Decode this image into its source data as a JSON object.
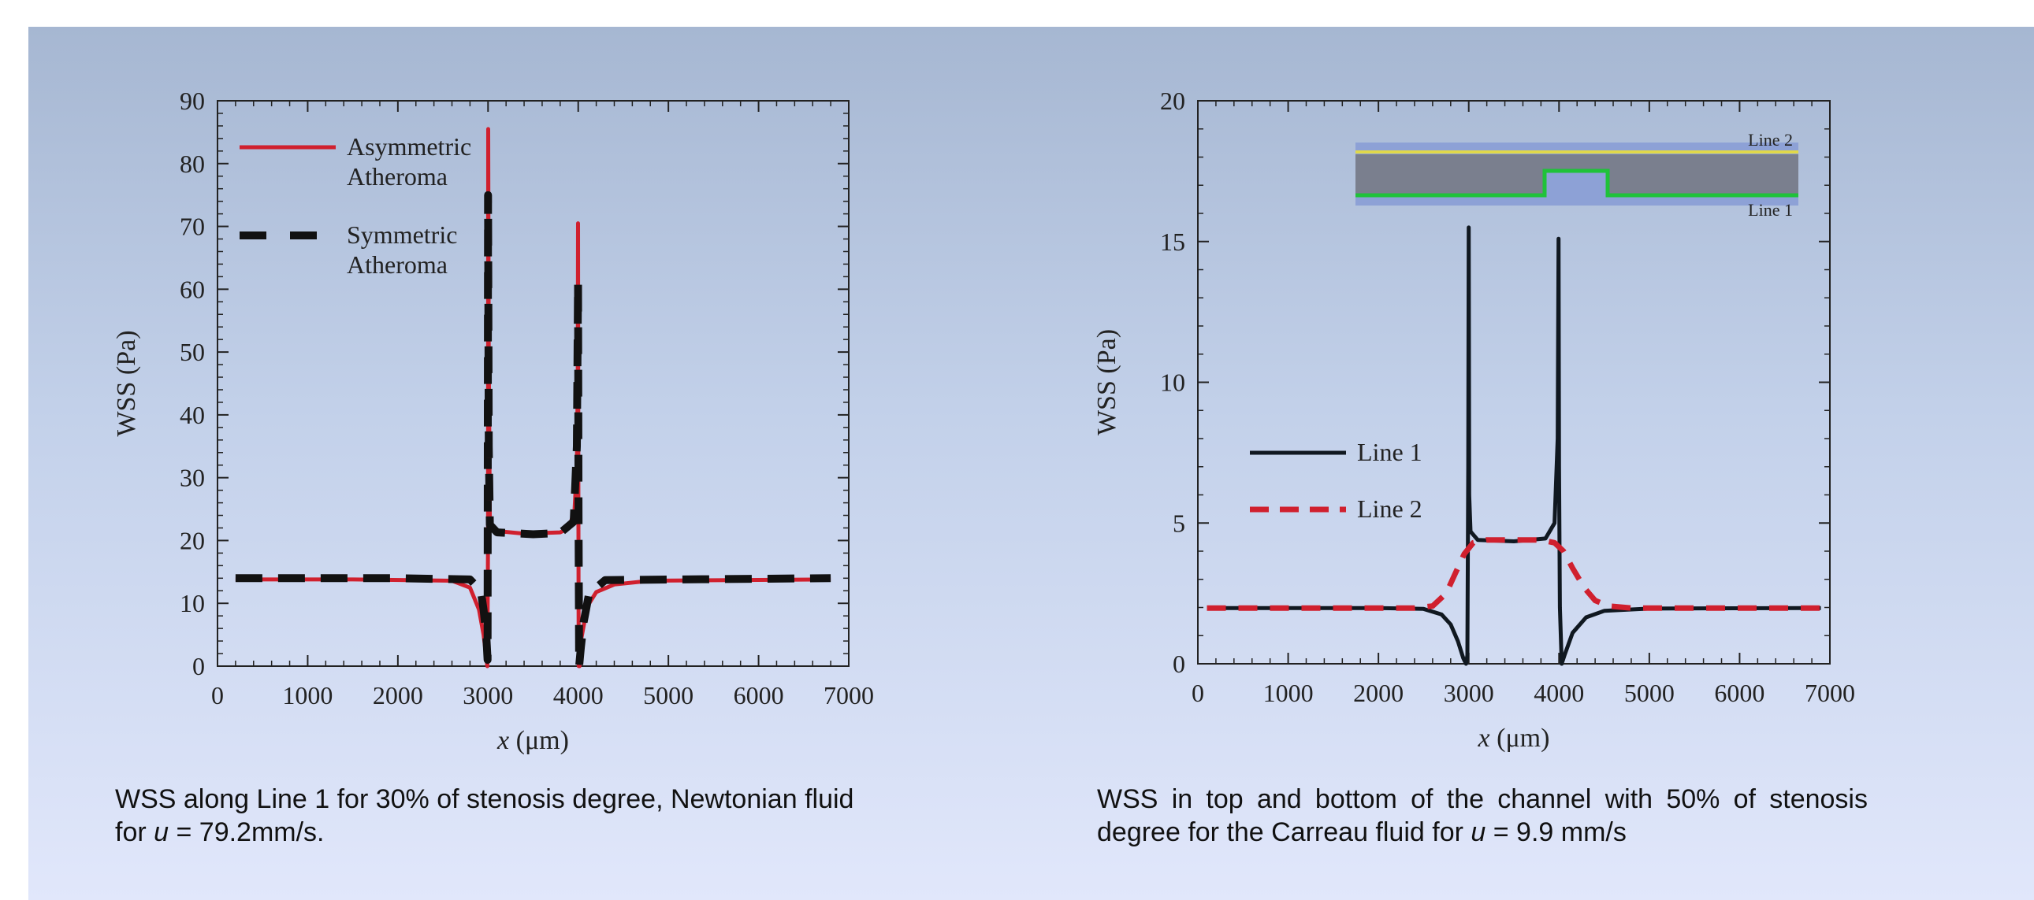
{
  "charts": [
    {
      "caption": {
        "pre": "WSS along Line 1 for 30% of stenosis degree, Newtonian fluid for ",
        "var": "u",
        "post": " = 79.2mm/s."
      }
    },
    {
      "caption": {
        "pre": "WSS in top and bottom of the channel with 50% of stenosis degree for the Carreau fluid for ",
        "var": "u",
        "post": " = 9.9 mm/s"
      },
      "inset_labels": [
        "Line 2",
        "Line 1"
      ]
    }
  ],
  "chart_data": [
    {
      "type": "line",
      "xlabel_var": "x",
      "xlabel_unit": "(μm)",
      "ylabel": "WSS (Pa)",
      "xlim": [
        0,
        7000
      ],
      "ylim": [
        0,
        90
      ],
      "xticks": [
        "0",
        "1000",
        "2000",
        "3000",
        "4000",
        "5000",
        "6000",
        "7000"
      ],
      "yticks": [
        "0",
        "10",
        "20",
        "30",
        "40",
        "50",
        "60",
        "70",
        "80",
        "90"
      ],
      "legend_position": "top-left",
      "series": [
        {
          "name": [
            "Asymmetric",
            "Atheroma"
          ],
          "color": "#d0202e",
          "dash": "solid",
          "points": [
            [
              200,
              13.8
            ],
            [
              1500,
              13.8
            ],
            [
              2600,
              13.6
            ],
            [
              2800,
              12.5
            ],
            [
              2900,
              9
            ],
            [
              2950,
              5
            ],
            [
              2980,
              1.5
            ],
            [
              2992,
              0
            ],
            [
              3000,
              20
            ],
            [
              3002,
              85.5
            ],
            [
              3008,
              50
            ],
            [
              3020,
              23
            ],
            [
              3100,
              21.5
            ],
            [
              3400,
              21.1
            ],
            [
              3800,
              21.3
            ],
            [
              3900,
              22
            ],
            [
              3960,
              25
            ],
            [
              3985,
              32
            ],
            [
              3995,
              45
            ],
            [
              3998,
              70.5
            ],
            [
              4002,
              30
            ],
            [
              4005,
              0
            ],
            [
              4015,
              0
            ],
            [
              4030,
              4
            ],
            [
              4100,
              9.5
            ],
            [
              4200,
              11.8
            ],
            [
              4400,
              13
            ],
            [
              4800,
              13.6
            ],
            [
              6800,
              13.8
            ]
          ]
        },
        {
          "name": [
            "Symmetric",
            "Atheroma"
          ],
          "color": "#111111",
          "dash": "dashed",
          "points": [
            [
              200,
              14
            ],
            [
              2000,
              14
            ],
            [
              2800,
              13.8
            ],
            [
              2920,
              12
            ],
            [
              2950,
              9
            ],
            [
              2980,
              5
            ],
            [
              2995,
              1
            ],
            [
              3000,
              75
            ],
            [
              3008,
              35
            ],
            [
              3020,
              22.5
            ],
            [
              3100,
              21.3
            ],
            [
              3500,
              21
            ],
            [
              3800,
              21.2
            ],
            [
              3950,
              23
            ],
            [
              3985,
              35
            ],
            [
              3998,
              61
            ],
            [
              4003,
              25
            ],
            [
              4010,
              0
            ],
            [
              4030,
              3
            ],
            [
              4060,
              7
            ],
            [
              4120,
              11.5
            ],
            [
              4300,
              13.7
            ],
            [
              6800,
              14
            ]
          ]
        }
      ]
    },
    {
      "type": "line",
      "xlabel_var": "x",
      "xlabel_unit": "(μm)",
      "ylabel": "WSS (Pa)",
      "xlim": [
        0,
        7000
      ],
      "ylim": [
        0,
        20
      ],
      "xticks": [
        "0",
        "1000",
        "2000",
        "3000",
        "4000",
        "5000",
        "6000",
        "7000"
      ],
      "yticks": [
        "0",
        "5",
        "10",
        "15",
        "20"
      ],
      "legend_position": "middle-left",
      "series": [
        {
          "name": [
            "Line 1"
          ],
          "color": "#101820",
          "dash": "solid",
          "points": [
            [
              100,
              1.98
            ],
            [
              2000,
              1.98
            ],
            [
              2500,
              1.95
            ],
            [
              2700,
              1.75
            ],
            [
              2800,
              1.4
            ],
            [
              2880,
              0.8
            ],
            [
              2940,
              0.2
            ],
            [
              2970,
              0
            ],
            [
              2985,
              0.3
            ],
            [
              2995,
              7
            ],
            [
              3000,
              15.5
            ],
            [
              3005,
              6
            ],
            [
              3020,
              4.7
            ],
            [
              3100,
              4.4
            ],
            [
              3500,
              4.35
            ],
            [
              3850,
              4.45
            ],
            [
              3950,
              5
            ],
            [
              3985,
              8
            ],
            [
              3995,
              15.1
            ],
            [
              4000,
              7
            ],
            [
              4010,
              2
            ],
            [
              4030,
              0
            ],
            [
              4060,
              0.3
            ],
            [
              4150,
              1.1
            ],
            [
              4300,
              1.65
            ],
            [
              4500,
              1.88
            ],
            [
              5000,
              1.96
            ],
            [
              6900,
              1.98
            ]
          ]
        },
        {
          "name": [
            "Line 2"
          ],
          "color": "#d0202e",
          "dash": "dashed",
          "points": [
            [
              100,
              1.98
            ],
            [
              2400,
              1.98
            ],
            [
              2600,
              2.05
            ],
            [
              2750,
              2.5
            ],
            [
              2850,
              3.2
            ],
            [
              2950,
              3.9
            ],
            [
              3050,
              4.3
            ],
            [
              3200,
              4.4
            ],
            [
              3800,
              4.4
            ],
            [
              3950,
              4.3
            ],
            [
              4050,
              4.0
            ],
            [
              4150,
              3.4
            ],
            [
              4280,
              2.7
            ],
            [
              4400,
              2.25
            ],
            [
              4550,
              2.05
            ],
            [
              4800,
              1.98
            ],
            [
              6900,
              1.98
            ]
          ]
        }
      ]
    }
  ]
}
